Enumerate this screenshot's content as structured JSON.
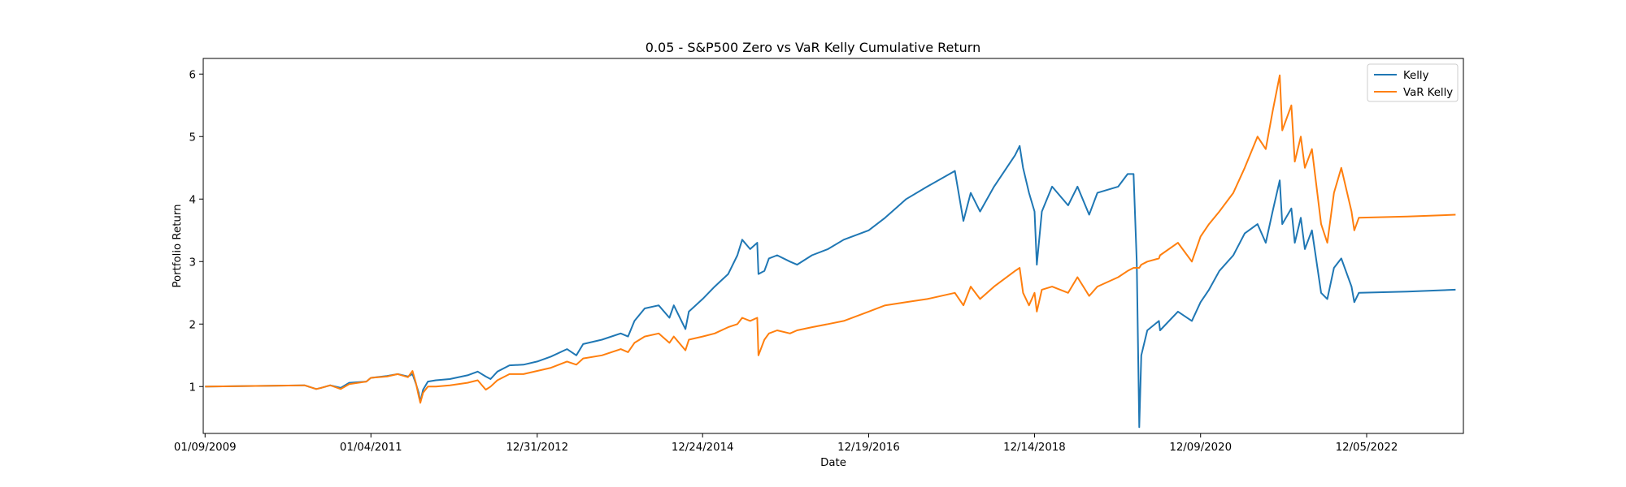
{
  "chart_data": {
    "type": "line",
    "title": "0.05 - S&P500 Zero vs VaR Kelly Cumulative Return",
    "xlabel": "Date",
    "ylabel": "Portfolio Return",
    "xlim": [
      "2009-01-01",
      "2024-02-01"
    ],
    "ylim": [
      0.25,
      6.25
    ],
    "x_ticks": [
      "01/09/2009",
      "01/04/2011",
      "12/31/2012",
      "12/24/2014",
      "12/19/2016",
      "12/14/2018",
      "12/09/2020",
      "12/05/2022"
    ],
    "x_tick_dates": [
      "2009-01-09",
      "2011-01-04",
      "2012-12-31",
      "2014-12-24",
      "2016-12-19",
      "2018-12-14",
      "2020-12-09",
      "2022-12-05"
    ],
    "y_ticks": [
      1,
      2,
      3,
      4,
      5,
      6
    ],
    "grid": false,
    "legend_position": "top-right",
    "series": [
      {
        "name": "Kelly",
        "color": "#1f77b4",
        "points": [
          [
            "2009-01-09",
            1.0
          ],
          [
            "2010-03-20",
            1.02
          ],
          [
            "2010-05-10",
            0.96
          ],
          [
            "2010-06-01",
            0.98
          ],
          [
            "2010-07-10",
            1.02
          ],
          [
            "2010-08-25",
            0.98
          ],
          [
            "2010-10-01",
            1.06
          ],
          [
            "2010-12-15",
            1.08
          ],
          [
            "2011-01-04",
            1.14
          ],
          [
            "2011-03-15",
            1.17
          ],
          [
            "2011-05-01",
            1.2
          ],
          [
            "2011-06-15",
            1.16
          ],
          [
            "2011-07-05",
            1.2
          ],
          [
            "2011-07-20",
            1.04
          ],
          [
            "2011-08-01",
            0.9
          ],
          [
            "2011-08-08",
            0.75
          ],
          [
            "2011-08-20",
            0.95
          ],
          [
            "2011-09-10",
            1.08
          ],
          [
            "2011-10-15",
            1.1
          ],
          [
            "2011-12-15",
            1.12
          ],
          [
            "2012-03-01",
            1.18
          ],
          [
            "2012-04-15",
            1.24
          ],
          [
            "2012-05-20",
            1.16
          ],
          [
            "2012-06-10",
            1.12
          ],
          [
            "2012-07-10",
            1.24
          ],
          [
            "2012-09-01",
            1.34
          ],
          [
            "2012-11-01",
            1.35
          ],
          [
            "2012-12-31",
            1.4
          ],
          [
            "2013-03-01",
            1.48
          ],
          [
            "2013-05-10",
            1.6
          ],
          [
            "2013-06-20",
            1.5
          ],
          [
            "2013-07-20",
            1.68
          ],
          [
            "2013-10-10",
            1.75
          ],
          [
            "2013-12-31",
            1.85
          ],
          [
            "2014-02-01",
            1.8
          ],
          [
            "2014-03-01",
            2.05
          ],
          [
            "2014-04-15",
            2.25
          ],
          [
            "2014-06-15",
            2.3
          ],
          [
            "2014-08-01",
            2.1
          ],
          [
            "2014-08-20",
            2.3
          ],
          [
            "2014-10-10",
            1.92
          ],
          [
            "2014-10-25",
            2.2
          ],
          [
            "2014-12-24",
            2.4
          ],
          [
            "2015-02-15",
            2.6
          ],
          [
            "2015-04-15",
            2.8
          ],
          [
            "2015-05-25",
            3.1
          ],
          [
            "2015-06-15",
            3.35
          ],
          [
            "2015-07-20",
            3.2
          ],
          [
            "2015-08-20",
            3.3
          ],
          [
            "2015-08-25",
            2.8
          ],
          [
            "2015-09-20",
            2.85
          ],
          [
            "2015-10-10",
            3.05
          ],
          [
            "2015-11-15",
            3.1
          ],
          [
            "2016-01-10",
            3.0
          ],
          [
            "2016-02-10",
            2.95
          ],
          [
            "2016-04-15",
            3.1
          ],
          [
            "2016-06-24",
            3.2
          ],
          [
            "2016-09-01",
            3.35
          ],
          [
            "2016-12-19",
            3.5
          ],
          [
            "2017-03-01",
            3.7
          ],
          [
            "2017-06-01",
            4.0
          ],
          [
            "2017-09-01",
            4.2
          ],
          [
            "2017-12-31",
            4.45
          ],
          [
            "2018-02-06",
            3.65
          ],
          [
            "2018-03-10",
            4.1
          ],
          [
            "2018-04-20",
            3.8
          ],
          [
            "2018-06-20",
            4.2
          ],
          [
            "2018-09-20",
            4.7
          ],
          [
            "2018-10-10",
            4.85
          ],
          [
            "2018-10-25",
            4.5
          ],
          [
            "2018-11-20",
            4.1
          ],
          [
            "2018-12-14",
            3.8
          ],
          [
            "2018-12-24",
            2.95
          ],
          [
            "2019-01-15",
            3.8
          ],
          [
            "2019-03-01",
            4.2
          ],
          [
            "2019-05-10",
            3.9
          ],
          [
            "2019-06-20",
            4.2
          ],
          [
            "2019-08-10",
            3.75
          ],
          [
            "2019-09-15",
            4.1
          ],
          [
            "2019-12-15",
            4.2
          ],
          [
            "2020-01-25",
            4.4
          ],
          [
            "2020-02-20",
            4.4
          ],
          [
            "2020-03-05",
            3.0
          ],
          [
            "2020-03-16",
            0.35
          ],
          [
            "2020-03-25",
            1.5
          ],
          [
            "2020-04-20",
            1.9
          ],
          [
            "2020-06-10",
            2.05
          ],
          [
            "2020-06-15",
            1.9
          ],
          [
            "2020-09-01",
            2.2
          ],
          [
            "2020-11-01",
            2.05
          ],
          [
            "2020-12-09",
            2.35
          ],
          [
            "2021-01-15",
            2.55
          ],
          [
            "2021-03-01",
            2.85
          ],
          [
            "2021-05-01",
            3.1
          ],
          [
            "2021-06-20",
            3.45
          ],
          [
            "2021-08-15",
            3.6
          ],
          [
            "2021-09-20",
            3.3
          ],
          [
            "2021-10-20",
            3.8
          ],
          [
            "2021-11-20",
            4.3
          ],
          [
            "2021-12-01",
            3.6
          ],
          [
            "2022-01-10",
            3.85
          ],
          [
            "2022-01-25",
            3.3
          ],
          [
            "2022-02-20",
            3.7
          ],
          [
            "2022-03-10",
            3.2
          ],
          [
            "2022-04-10",
            3.5
          ],
          [
            "2022-05-20",
            2.5
          ],
          [
            "2022-06-16",
            2.4
          ],
          [
            "2022-07-15",
            2.9
          ],
          [
            "2022-08-16",
            3.05
          ],
          [
            "2022-09-30",
            2.6
          ],
          [
            "2022-10-12",
            2.35
          ],
          [
            "2022-11-01",
            2.5
          ],
          [
            "2023-06-01",
            2.52
          ],
          [
            "2023-12-29",
            2.55
          ]
        ]
      },
      {
        "name": "VaR Kelly",
        "color": "#ff7f0e",
        "points": [
          [
            "2009-01-09",
            1.0
          ],
          [
            "2010-03-20",
            1.02
          ],
          [
            "2010-05-10",
            0.96
          ],
          [
            "2010-06-01",
            0.98
          ],
          [
            "2010-07-10",
            1.02
          ],
          [
            "2010-08-25",
            0.96
          ],
          [
            "2010-10-01",
            1.04
          ],
          [
            "2010-12-15",
            1.08
          ],
          [
            "2011-01-04",
            1.14
          ],
          [
            "2011-03-15",
            1.16
          ],
          [
            "2011-05-01",
            1.2
          ],
          [
            "2011-06-15",
            1.15
          ],
          [
            "2011-07-05",
            1.25
          ],
          [
            "2011-07-20",
            1.05
          ],
          [
            "2011-08-01",
            0.85
          ],
          [
            "2011-08-08",
            0.74
          ],
          [
            "2011-08-20",
            0.9
          ],
          [
            "2011-09-10",
            1.0
          ],
          [
            "2011-10-15",
            1.0
          ],
          [
            "2011-12-15",
            1.02
          ],
          [
            "2012-03-01",
            1.06
          ],
          [
            "2012-04-15",
            1.1
          ],
          [
            "2012-05-20",
            0.95
          ],
          [
            "2012-06-10",
            1.0
          ],
          [
            "2012-07-10",
            1.1
          ],
          [
            "2012-09-01",
            1.2
          ],
          [
            "2012-11-01",
            1.2
          ],
          [
            "2012-12-31",
            1.25
          ],
          [
            "2013-03-01",
            1.3
          ],
          [
            "2013-05-10",
            1.4
          ],
          [
            "2013-06-20",
            1.35
          ],
          [
            "2013-07-20",
            1.45
          ],
          [
            "2013-10-10",
            1.5
          ],
          [
            "2013-12-31",
            1.6
          ],
          [
            "2014-02-01",
            1.55
          ],
          [
            "2014-03-01",
            1.7
          ],
          [
            "2014-04-15",
            1.8
          ],
          [
            "2014-06-15",
            1.85
          ],
          [
            "2014-08-01",
            1.7
          ],
          [
            "2014-08-20",
            1.8
          ],
          [
            "2014-10-10",
            1.58
          ],
          [
            "2014-10-25",
            1.75
          ],
          [
            "2014-12-24",
            1.8
          ],
          [
            "2015-02-15",
            1.85
          ],
          [
            "2015-04-15",
            1.95
          ],
          [
            "2015-05-25",
            2.0
          ],
          [
            "2015-06-15",
            2.1
          ],
          [
            "2015-07-20",
            2.05
          ],
          [
            "2015-08-20",
            2.1
          ],
          [
            "2015-08-25",
            1.5
          ],
          [
            "2015-09-20",
            1.75
          ],
          [
            "2015-10-10",
            1.85
          ],
          [
            "2015-11-15",
            1.9
          ],
          [
            "2016-01-10",
            1.85
          ],
          [
            "2016-02-10",
            1.9
          ],
          [
            "2016-04-15",
            1.95
          ],
          [
            "2016-06-24",
            2.0
          ],
          [
            "2016-09-01",
            2.05
          ],
          [
            "2016-12-19",
            2.2
          ],
          [
            "2017-03-01",
            2.3
          ],
          [
            "2017-06-01",
            2.35
          ],
          [
            "2017-09-01",
            2.4
          ],
          [
            "2017-12-31",
            2.5
          ],
          [
            "2018-02-06",
            2.3
          ],
          [
            "2018-03-10",
            2.6
          ],
          [
            "2018-04-20",
            2.4
          ],
          [
            "2018-06-20",
            2.6
          ],
          [
            "2018-09-20",
            2.85
          ],
          [
            "2018-10-10",
            2.9
          ],
          [
            "2018-10-25",
            2.5
          ],
          [
            "2018-11-20",
            2.3
          ],
          [
            "2018-12-14",
            2.5
          ],
          [
            "2018-12-24",
            2.2
          ],
          [
            "2019-01-15",
            2.55
          ],
          [
            "2019-03-01",
            2.6
          ],
          [
            "2019-05-10",
            2.5
          ],
          [
            "2019-06-20",
            2.75
          ],
          [
            "2019-08-10",
            2.45
          ],
          [
            "2019-09-15",
            2.6
          ],
          [
            "2019-12-15",
            2.75
          ],
          [
            "2020-01-25",
            2.85
          ],
          [
            "2020-02-20",
            2.9
          ],
          [
            "2020-03-05",
            2.9
          ],
          [
            "2020-03-16",
            2.9
          ],
          [
            "2020-03-25",
            2.95
          ],
          [
            "2020-04-20",
            3.0
          ],
          [
            "2020-06-10",
            3.05
          ],
          [
            "2020-06-15",
            3.1
          ],
          [
            "2020-09-01",
            3.3
          ],
          [
            "2020-11-01",
            3.0
          ],
          [
            "2020-12-09",
            3.4
          ],
          [
            "2021-01-15",
            3.6
          ],
          [
            "2021-03-01",
            3.8
          ],
          [
            "2021-05-01",
            4.1
          ],
          [
            "2021-06-20",
            4.5
          ],
          [
            "2021-08-15",
            5.0
          ],
          [
            "2021-09-20",
            4.8
          ],
          [
            "2021-10-20",
            5.4
          ],
          [
            "2021-11-20",
            5.98
          ],
          [
            "2021-12-01",
            5.1
          ],
          [
            "2022-01-10",
            5.5
          ],
          [
            "2022-01-25",
            4.6
          ],
          [
            "2022-02-20",
            5.0
          ],
          [
            "2022-03-10",
            4.5
          ],
          [
            "2022-04-10",
            4.8
          ],
          [
            "2022-05-20",
            3.6
          ],
          [
            "2022-06-16",
            3.3
          ],
          [
            "2022-07-15",
            4.1
          ],
          [
            "2022-08-16",
            4.5
          ],
          [
            "2022-09-30",
            3.8
          ],
          [
            "2022-10-12",
            3.5
          ],
          [
            "2022-11-01",
            3.7
          ],
          [
            "2023-06-01",
            3.72
          ],
          [
            "2023-12-29",
            3.75
          ]
        ]
      }
    ]
  }
}
